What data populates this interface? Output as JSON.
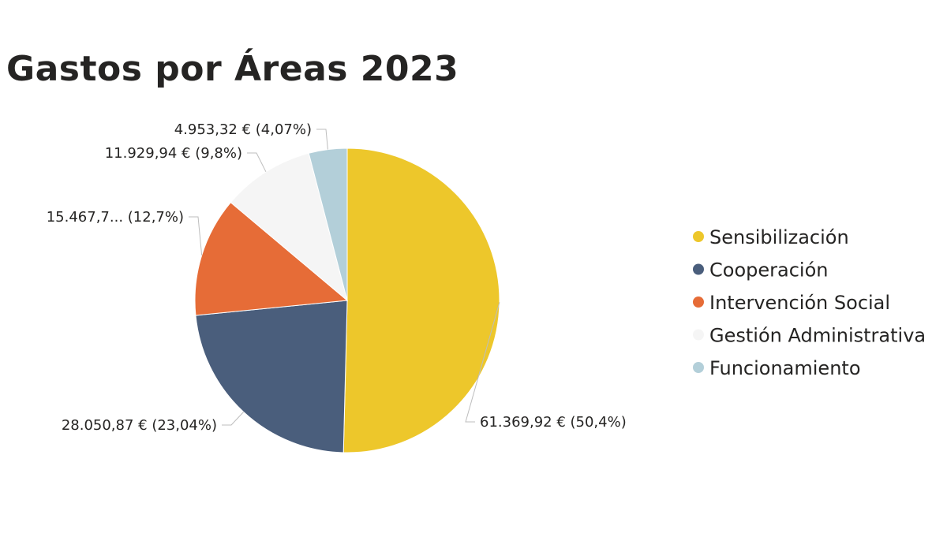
{
  "header": {
    "title": "Gastos por Áreas 2023"
  },
  "chart_data": {
    "type": "pie",
    "title": "Gastos por Áreas 2023",
    "legend_position": "right",
    "slices": [
      {
        "name": "Sensibilización",
        "value": 61369.92,
        "label": "61.369,92 € (50,4%)",
        "color": "#EDC72B"
      },
      {
        "name": "Cooperación",
        "value": 28050.87,
        "label": "28.050,87 € (23,04%)",
        "color": "#4A5E7C"
      },
      {
        "name": "Intervención Social",
        "value": 15467.7,
        "label": "15.467,7... (12,7%)",
        "color": "#E66C37"
      },
      {
        "name": "Gestión Administrativa",
        "value": 11929.94,
        "label": "11.929,94 € (9,8%)",
        "color": "#F5F5F5"
      },
      {
        "name": "Funcionamiento",
        "value": 4953.32,
        "label": "4.953,32 € (4,07%)",
        "color": "#B3CFD9"
      }
    ]
  }
}
